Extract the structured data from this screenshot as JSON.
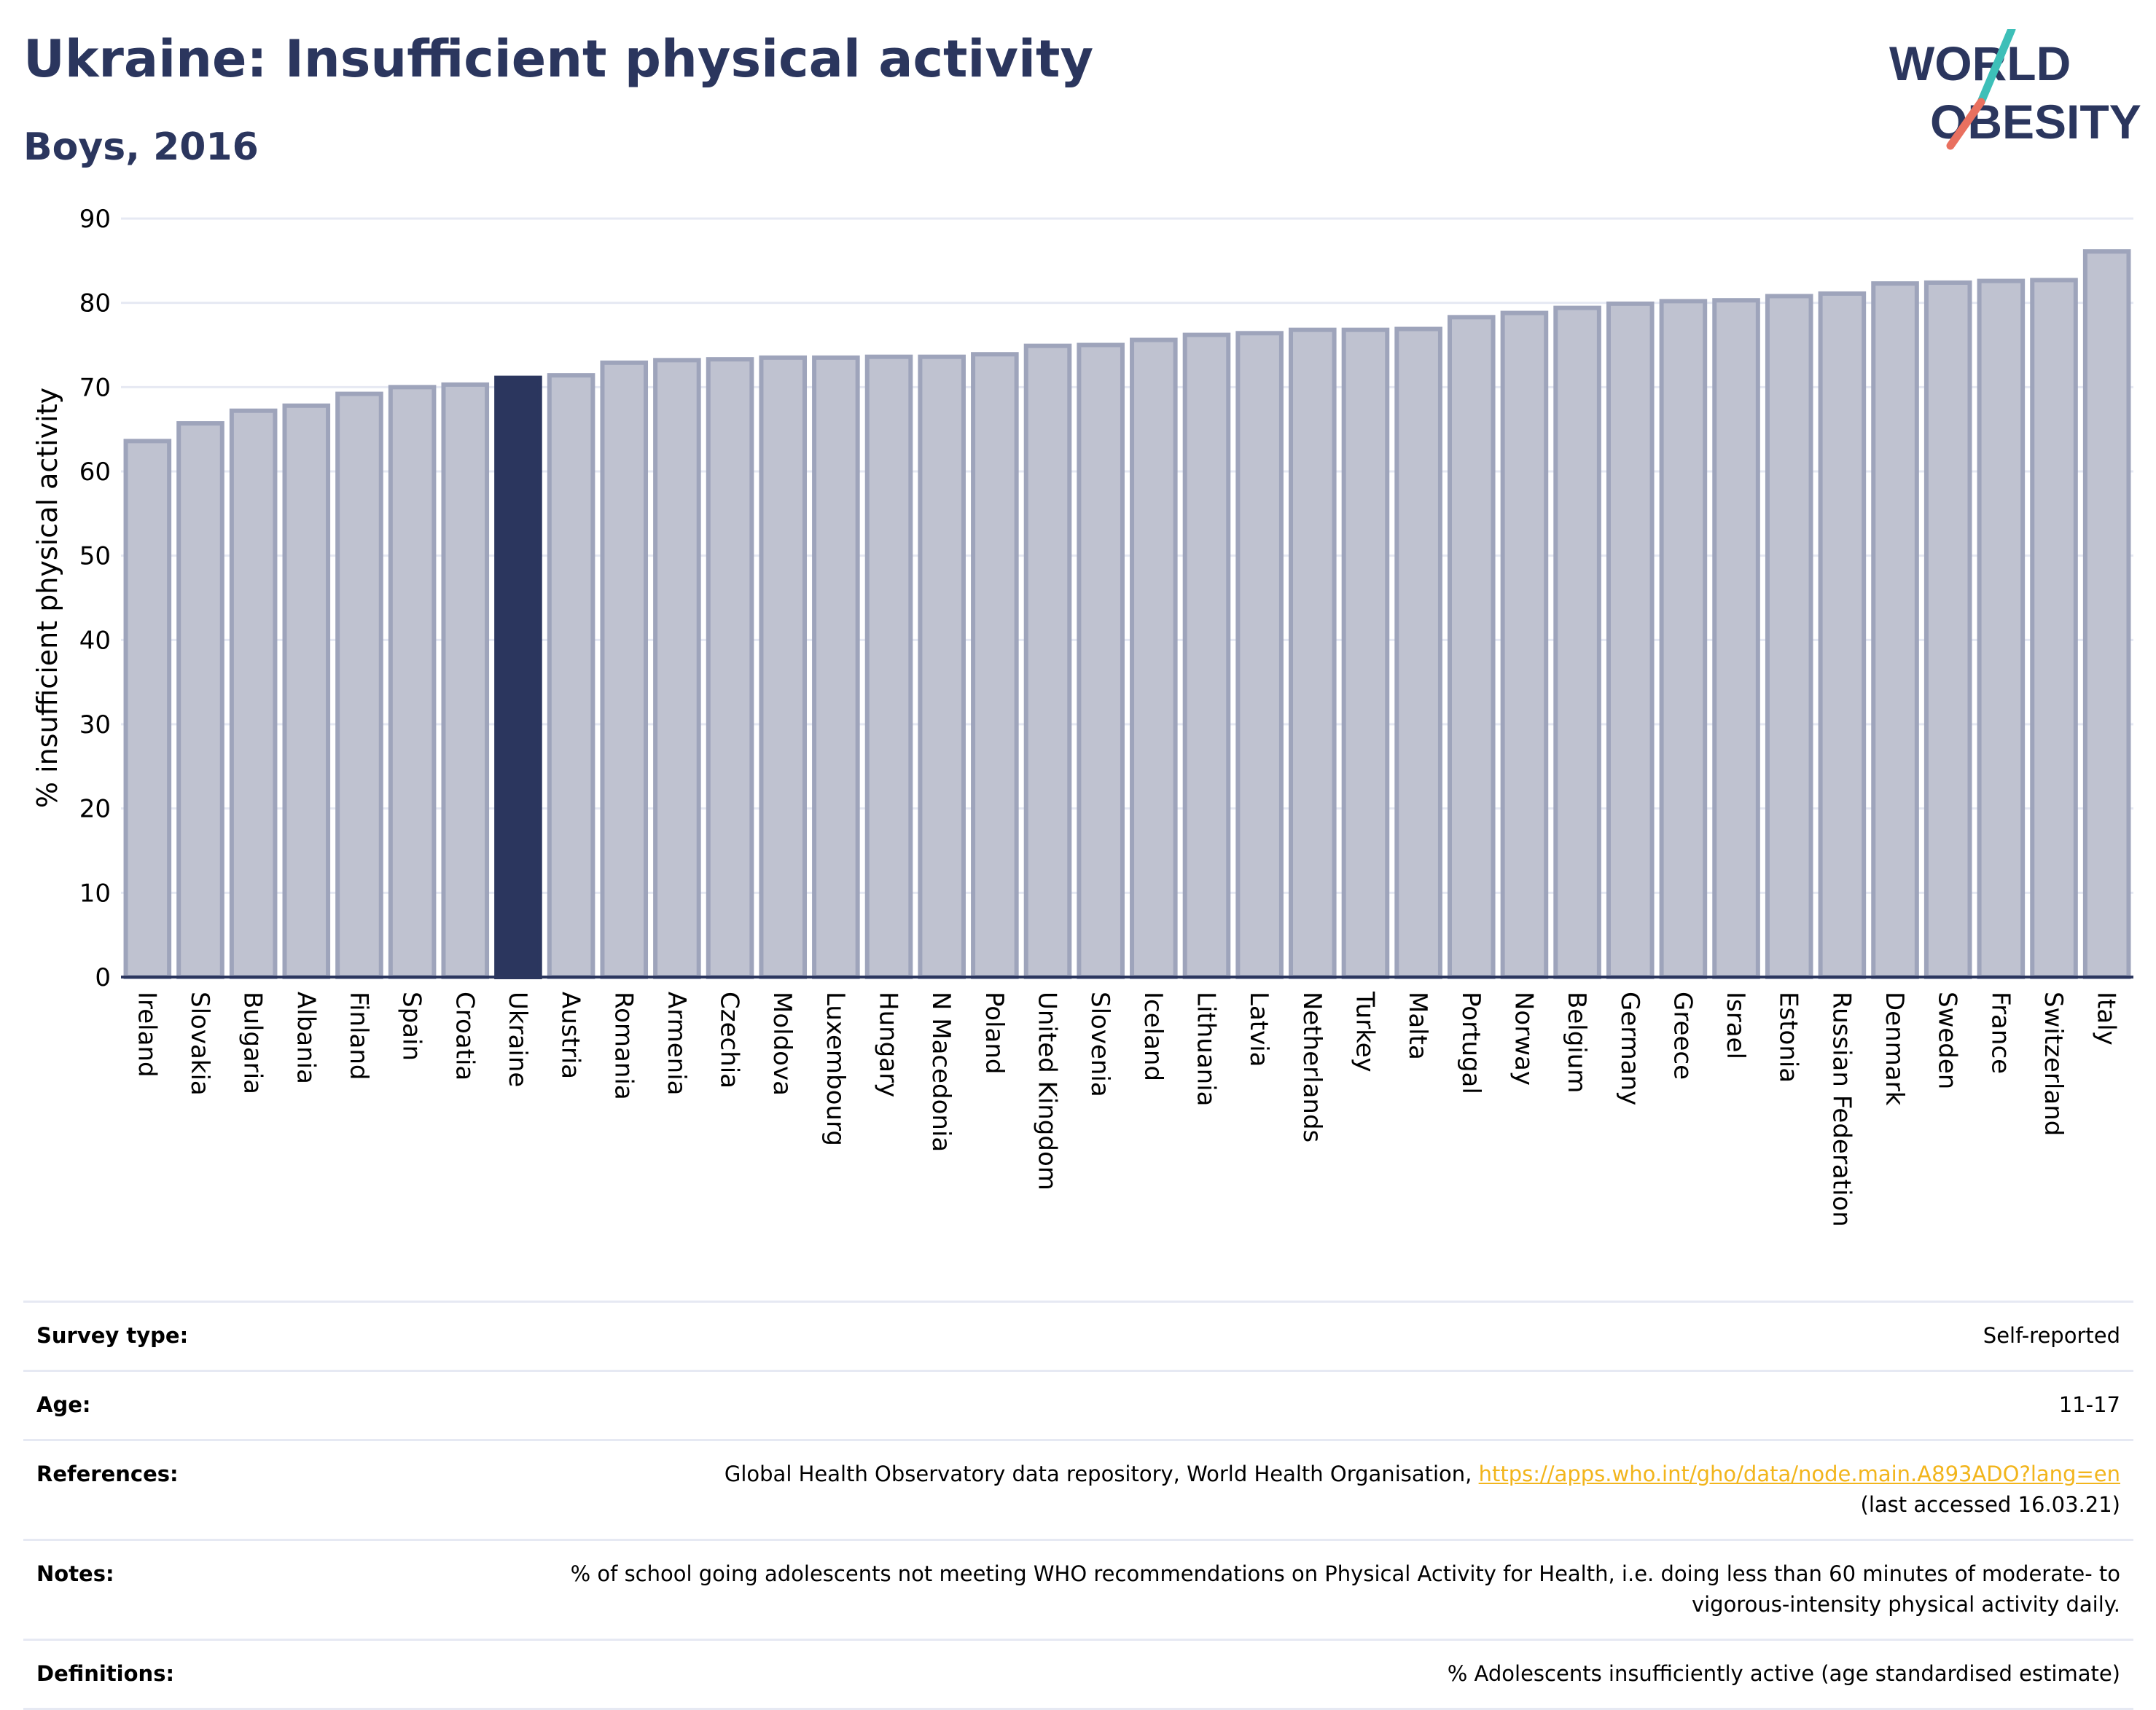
{
  "header": {
    "title": "Ukraine: Insufficient physical activity",
    "subtitle": "Boys, 2016"
  },
  "logo": {
    "line1": "WORLD",
    "line2": "OBESITY",
    "colors": {
      "text": "#2b365e",
      "teal": "#3dbfb8",
      "coral": "#e9705f"
    }
  },
  "colors": {
    "bar_fill": "#bfc2d0",
    "bar_stroke": "#9ea4bb",
    "highlight_fill": "#2b365e",
    "grid": "#e6e9f3",
    "axis_text": "#000000"
  },
  "chart_data": {
    "type": "bar",
    "title": "Ukraine: Insufficient physical activity",
    "subtitle": "Boys, 2016",
    "ylabel": "% insufficient physical activity",
    "xlabel": "",
    "ylim": [
      0,
      90
    ],
    "yticks": [
      0,
      10,
      20,
      30,
      40,
      50,
      60,
      70,
      80,
      90
    ],
    "grid": true,
    "highlight": "Ukraine",
    "categories": [
      "Ireland",
      "Slovakia",
      "Bulgaria",
      "Albania",
      "Finland",
      "Spain",
      "Croatia",
      "Ukraine",
      "Austria",
      "Romania",
      "Armenia",
      "Czechia",
      "Moldova",
      "Luxembourg",
      "Hungary",
      "N Macedonia",
      "Poland",
      "United Kingdom",
      "Slovenia",
      "Iceland",
      "Lithuania",
      "Latvia",
      "Netherlands",
      "Turkey",
      "Malta",
      "Portugal",
      "Norway",
      "Belgium",
      "Germany",
      "Greece",
      "Israel",
      "Estonia",
      "Russian Federation",
      "Denmark",
      "Sweden",
      "France",
      "Switzerland",
      "Italy"
    ],
    "values": [
      63.6,
      65.7,
      67.2,
      67.8,
      69.2,
      70.0,
      70.3,
      71.1,
      71.4,
      72.9,
      73.2,
      73.3,
      73.5,
      73.5,
      73.6,
      73.6,
      73.9,
      74.9,
      75.0,
      75.6,
      76.2,
      76.4,
      76.8,
      76.8,
      76.9,
      78.3,
      78.8,
      79.4,
      79.9,
      80.2,
      80.3,
      80.8,
      81.1,
      82.3,
      82.4,
      82.6,
      82.7,
      86.1
    ]
  },
  "info": [
    {
      "key": "Survey type:",
      "value": "Self-reported"
    },
    {
      "key": "Age:",
      "value": "11-17"
    },
    {
      "key": "References:",
      "value": "Global Health Observatory data repository, World Health Organisation, ",
      "link": "https://apps.who.int/gho/data/node.main.A893ADO?lang=en",
      "value_after": "(last accessed 16.03.21)"
    },
    {
      "key": "Notes:",
      "value": "% of school going adolescents not meeting WHO recommendations on Physical Activity for Health, i.e. doing less than 60 minutes of moderate- to vigorous-intensity physical activity daily."
    },
    {
      "key": "Definitions:",
      "value": "% Adolescents insufficiently active (age standardised estimate)"
    }
  ]
}
